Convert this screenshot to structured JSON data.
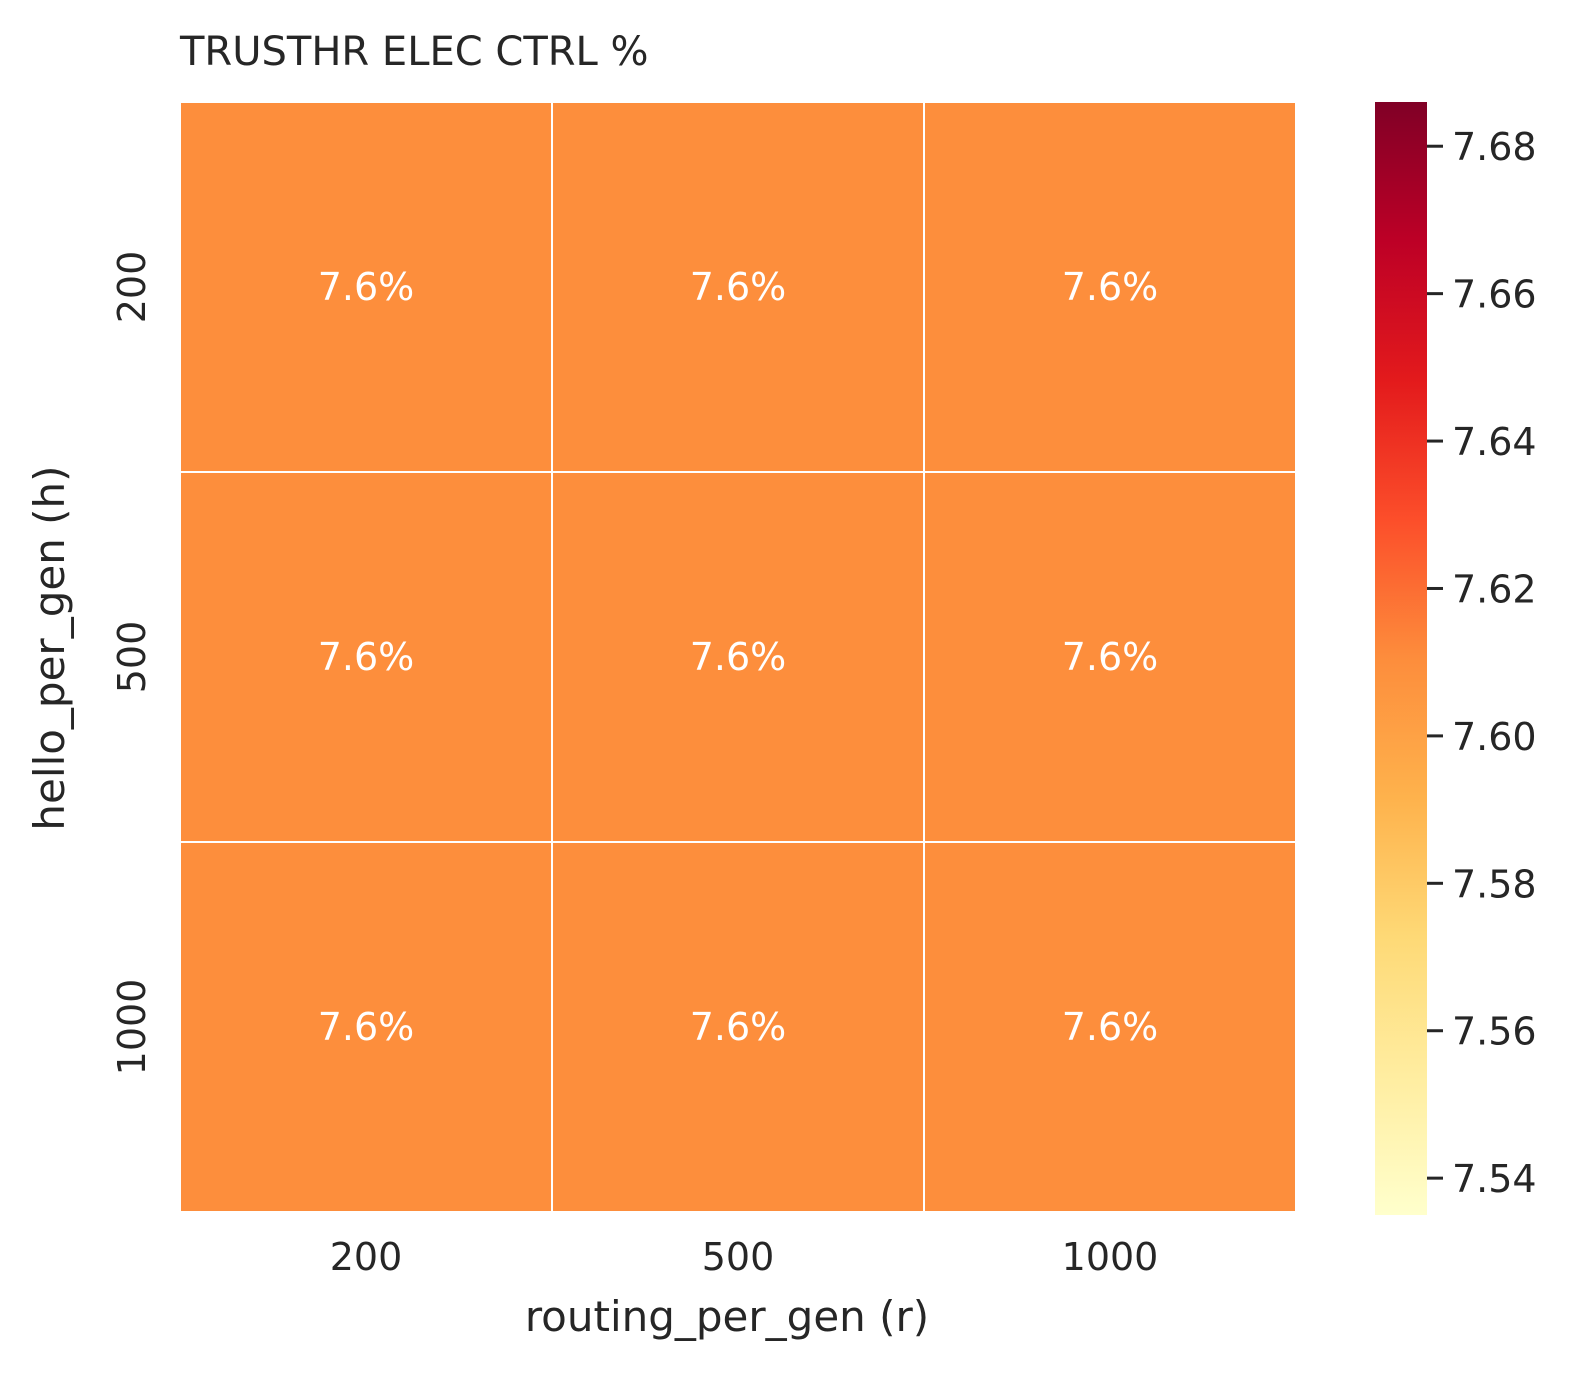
{
  "chart_data": {
    "type": "heatmap",
    "title": "TRUSTHR ELEC CTRL %",
    "xlabel": "routing_per_gen (r)",
    "ylabel": "hello_per_gen (h)",
    "x_categories": [
      "200",
      "500",
      "1000"
    ],
    "y_categories": [
      "200",
      "500",
      "1000"
    ],
    "values": [
      [
        7.61,
        7.61,
        7.61
      ],
      [
        7.61,
        7.61,
        7.61
      ],
      [
        7.61,
        7.61,
        7.61
      ]
    ],
    "cell_labels": [
      [
        "7.6%",
        "7.6%",
        "7.6%"
      ],
      [
        "7.6%",
        "7.6%",
        "7.6%"
      ],
      [
        "7.6%",
        "7.6%",
        "7.6%"
      ]
    ],
    "colorbar": {
      "range": [
        7.535,
        7.686
      ],
      "ticks": [
        7.54,
        7.56,
        7.58,
        7.6,
        7.62,
        7.64,
        7.66,
        7.68
      ],
      "tick_labels": [
        "7.54",
        "7.56",
        "7.58",
        "7.60",
        "7.62",
        "7.64",
        "7.66",
        "7.68"
      ],
      "colormap": [
        "#ffffcc",
        "#ffeda0",
        "#fed976",
        "#feb24c",
        "#fd8d3c",
        "#fc4e2a",
        "#e31a1c",
        "#bd0026",
        "#800026"
      ]
    },
    "cell_border_color": "#ffffff"
  }
}
